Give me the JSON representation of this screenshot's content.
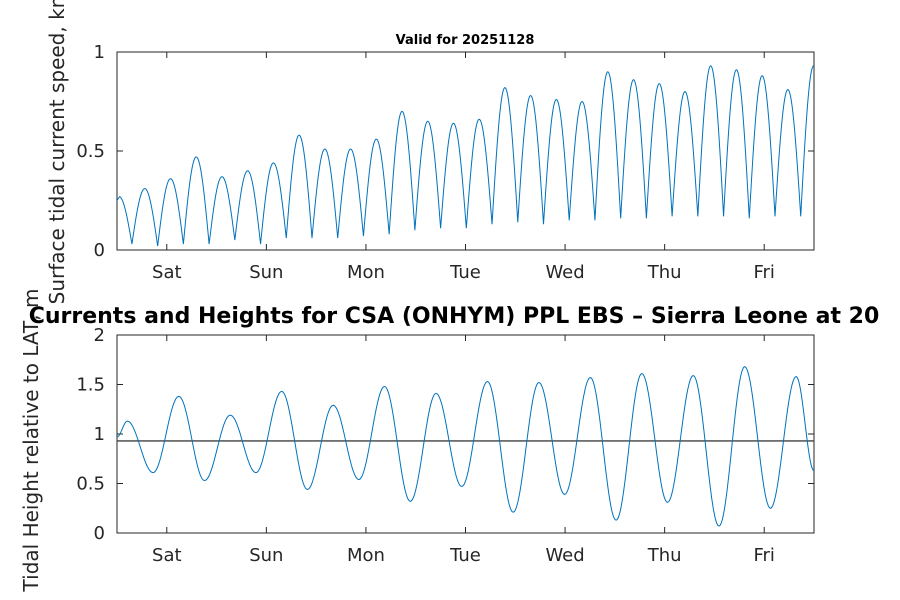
{
  "chart_data": [
    {
      "type": "line",
      "title": "Valid for 20251128",
      "xlabel": "",
      "ylabel": "Surface tidal current speed, kn",
      "ylim": [
        0,
        1
      ],
      "yticks": [
        0,
        0.5,
        1
      ],
      "ytick_labels": [
        "0",
        "0.5",
        "1"
      ],
      "x_tick_labels": [
        "Sat",
        "Sun",
        "Mon",
        "Tue",
        "Wed",
        "Thu",
        "Fri"
      ],
      "x_tick_positions_hours": [
        12,
        36,
        60,
        84,
        108,
        132,
        156
      ],
      "xlim_hours": [
        0,
        168
      ],
      "series_color": "#0072BD",
      "peaks": {
        "hours": [
          0.5,
          6.7,
          12.9,
          19.1,
          25.3,
          31.5,
          37.7,
          43.9,
          50.1,
          56.3,
          62.5,
          68.7,
          74.9,
          81.1,
          87.3,
          93.5,
          99.7,
          105.9,
          112.1,
          118.3,
          124.5,
          130.7,
          136.9,
          143.1,
          149.3,
          155.5,
          161.7,
          167.9
        ],
        "values": [
          0.27,
          0.31,
          0.36,
          0.47,
          0.37,
          0.4,
          0.44,
          0.58,
          0.51,
          0.51,
          0.56,
          0.7,
          0.65,
          0.64,
          0.66,
          0.82,
          0.78,
          0.76,
          0.75,
          0.9,
          0.86,
          0.84,
          0.8,
          0.93,
          0.91,
          0.88,
          0.81,
          0.93
        ]
      },
      "troughs": {
        "hours": [
          3.6,
          9.8,
          16.0,
          22.2,
          28.4,
          34.6,
          40.8,
          47.0,
          53.2,
          59.4,
          65.6,
          71.8,
          78.0,
          84.2,
          90.4,
          96.6,
          102.8,
          109.0,
          115.2,
          121.4,
          127.6,
          133.8,
          140.0,
          146.2,
          152.4,
          158.6,
          164.8
        ],
        "values": [
          0.03,
          0.02,
          0.03,
          0.03,
          0.05,
          0.03,
          0.06,
          0.06,
          0.06,
          0.07,
          0.08,
          0.1,
          0.11,
          0.11,
          0.13,
          0.14,
          0.13,
          0.15,
          0.15,
          0.16,
          0.16,
          0.17,
          0.17,
          0.17,
          0.16,
          0.17,
          0.17
        ]
      }
    },
    {
      "type": "line",
      "title": "Currents and Heights for CSA (ONHYM) PPL EBS  – Sierra Leone at 20",
      "xlabel": "",
      "ylabel": "Tidal Height relative to LAT, m",
      "ylim": [
        0,
        2
      ],
      "yticks": [
        0,
        0.5,
        1,
        1.5,
        2
      ],
      "ytick_labels": [
        "0",
        "0.5",
        "1",
        "1.5",
        "2"
      ],
      "x_tick_labels": [
        "Sat",
        "Sun",
        "Mon",
        "Tue",
        "Wed",
        "Thu",
        "Fri"
      ],
      "x_tick_positions_hours": [
        12,
        36,
        60,
        84,
        108,
        132,
        156
      ],
      "xlim_hours": [
        0,
        168
      ],
      "series_color": "#0072BD",
      "reference_line": {
        "value": 0.93,
        "color": "#404040"
      },
      "extrema": {
        "hours": [
          2.5,
          8.7,
          14.9,
          21.1,
          27.3,
          33.5,
          39.7,
          45.9,
          52.1,
          58.3,
          64.5,
          70.7,
          76.9,
          83.1,
          89.3,
          95.5,
          101.7,
          107.9,
          114.1,
          120.3,
          126.5,
          132.7,
          138.9,
          145.1,
          151.3,
          157.5,
          163.7
        ],
        "values": [
          1.13,
          0.61,
          1.38,
          0.53,
          1.19,
          0.61,
          1.43,
          0.44,
          1.29,
          0.54,
          1.48,
          0.32,
          1.41,
          0.47,
          1.53,
          0.21,
          1.52,
          0.39,
          1.57,
          0.13,
          1.61,
          0.31,
          1.59,
          0.07,
          1.68,
          0.25,
          1.58
        ]
      },
      "start_value": 0.97,
      "end_value": 0.63
    }
  ]
}
